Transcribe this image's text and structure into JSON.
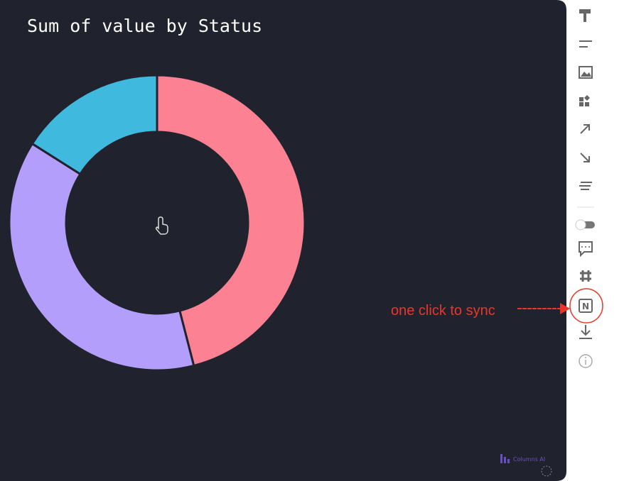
{
  "chart_data": {
    "type": "pie",
    "title": "Sum of value by Status",
    "values": [
      46,
      38,
      16
    ],
    "colors": [
      "#fb8193",
      "#b39ffb",
      "#3fbade"
    ],
    "donut": true
  },
  "annotation": "one click to sync",
  "watermark": "Columns AI"
}
